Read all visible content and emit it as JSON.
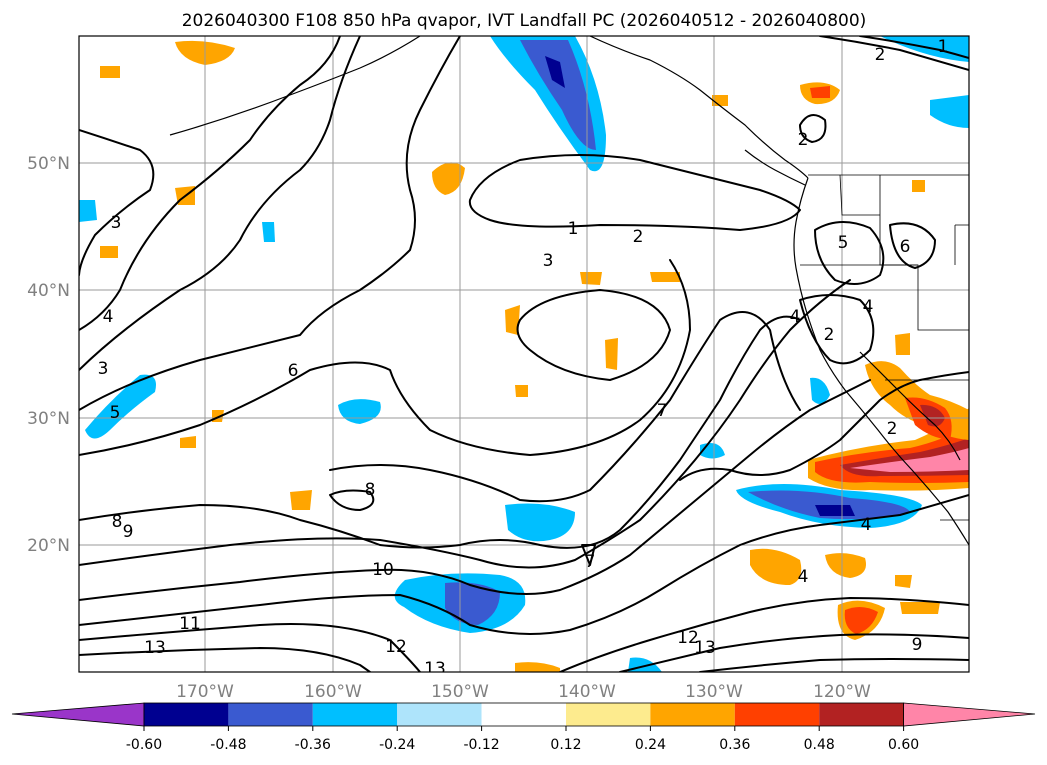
{
  "title": "2026040300 F108 850 hPa qvapor, IVT Landfall PC (2026040512 - 2026040800)",
  "lat_labels": [
    "50°N",
    "40°N",
    "30°N",
    "20°N"
  ],
  "lon_labels": [
    "170°W",
    "160°W",
    "150°W",
    "140°W",
    "130°W",
    "120°W"
  ],
  "colorbar": {
    "ticks": [
      "-0.60",
      "-0.48",
      "-0.36",
      "-0.24",
      "-0.12",
      "0.12",
      "0.24",
      "0.36",
      "0.48",
      "0.60"
    ],
    "colors": [
      "#9a35c9",
      "#000090",
      "#3a5ad0",
      "#00bfff",
      "#aee4fb",
      "#ffffff",
      "#fdeb8e",
      "#ffa500",
      "#ff4000",
      "#b22222",
      "#ff85a8"
    ]
  },
  "map": {
    "contour_labels": [
      "2",
      "1",
      "2",
      "1",
      "2",
      "3",
      "3",
      "4",
      "3",
      "5",
      "6",
      "5",
      "6",
      "4",
      "2",
      "4",
      "7",
      "8",
      "8",
      "9",
      "10",
      "11",
      "13",
      "12",
      "13",
      "12",
      "13",
      "9",
      "7",
      "4",
      "4",
      "2"
    ]
  },
  "colors": {
    "contour": "#000000",
    "grid": "#9a9a9a",
    "axis_text": "#808080"
  }
}
